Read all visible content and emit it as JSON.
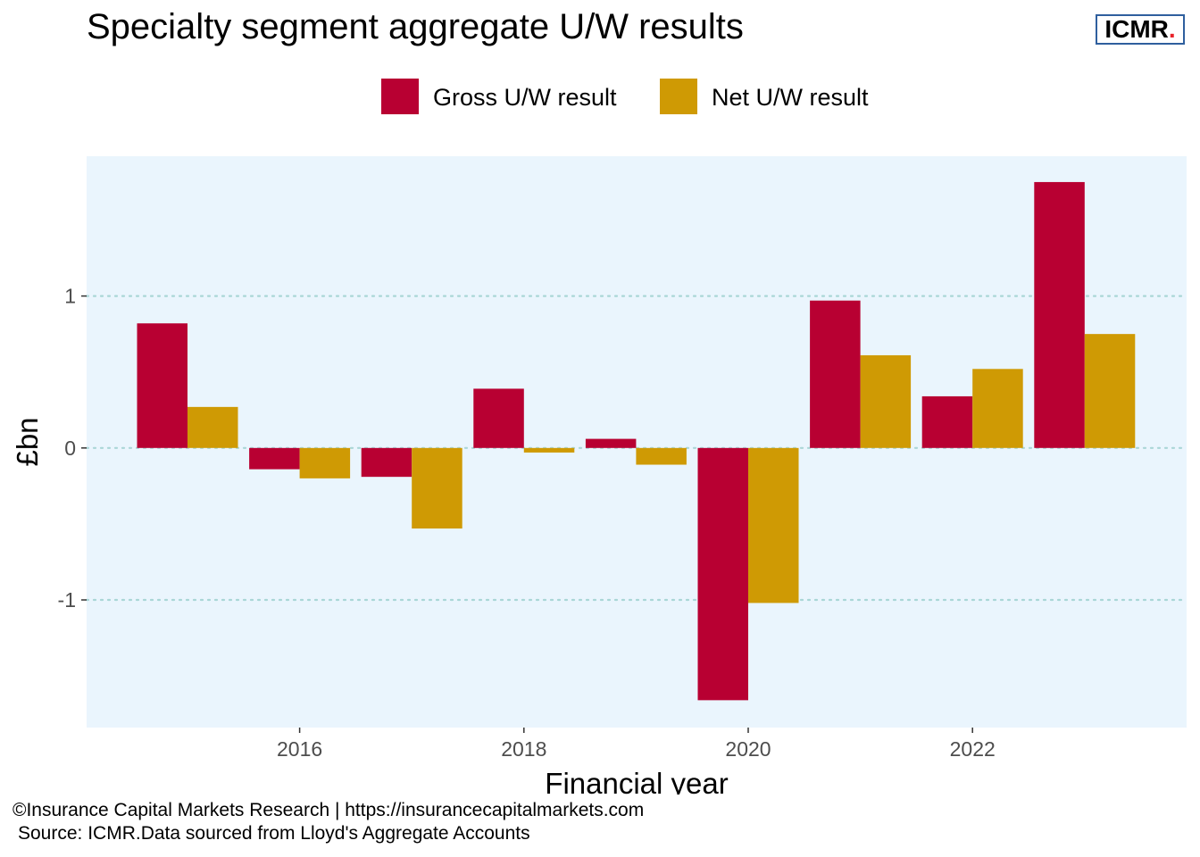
{
  "brand": {
    "logo_text": "ICMR",
    "logo_dot": ".",
    "logo_border_color": "#2f5f9e",
    "logo_dot_color": "#e8232a"
  },
  "footer": {
    "copyright": "©Insurance Capital Markets Research | https://insurancecapitalmarkets.com",
    "source": "Source: ICMR.Data sourced from Lloyd's Aggregate Accounts"
  },
  "chart_data": {
    "type": "bar",
    "title": "Specialty segment aggregate U/W results",
    "xlabel": "Financial year",
    "ylabel": "£bn",
    "categories": [
      2015,
      2016,
      2017,
      2018,
      2019,
      2020,
      2021,
      2022,
      2023
    ],
    "x_ticks": [
      "2016",
      "2018",
      "2020",
      "2022"
    ],
    "y_ticks": [
      -1,
      0,
      1
    ],
    "ylim": [
      -1.84,
      1.92
    ],
    "grid": "horizontal dotted",
    "legend_position": "top",
    "panel_background": "#eaf5fd",
    "series": [
      {
        "name": "Gross U/W result",
        "color": "#b80032",
        "values": [
          0.82,
          -0.14,
          -0.19,
          0.39,
          0.06,
          -1.66,
          0.97,
          0.34,
          1.75
        ]
      },
      {
        "name": "Net U/W result",
        "color": "#cf9a04",
        "values": [
          0.27,
          -0.2,
          -0.53,
          -0.03,
          -0.11,
          -1.02,
          0.61,
          0.52,
          0.75
        ]
      }
    ]
  }
}
